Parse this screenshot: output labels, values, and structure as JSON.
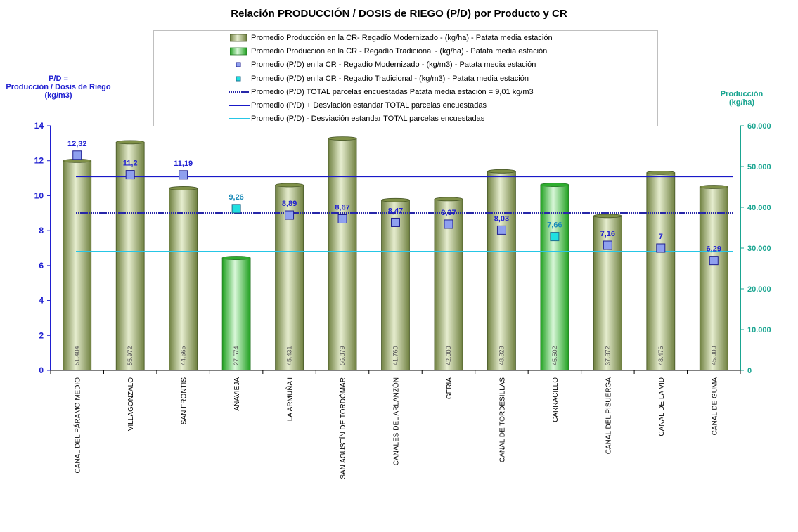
{
  "chart_data": {
    "type": "bar",
    "title": "Relación PRODUCCIÓN / DOSIS de RIEGO (P/D) por Producto y CR",
    "ylabel_left_lines": [
      "P/D =",
      "Producción / Dosis de Riego",
      "(kg/m3)"
    ],
    "ylabel_right_lines": [
      "Producción",
      "(kg/ha)"
    ],
    "ylim_left": [
      0,
      14
    ],
    "yticks_left": [
      "0",
      "2",
      "4",
      "6",
      "8",
      "10",
      "12",
      "14"
    ],
    "ylim_right": [
      0,
      60000
    ],
    "yticks_right": [
      "0",
      "10.000",
      "20.000",
      "30.000",
      "40.000",
      "50.000",
      "60.000"
    ],
    "categories": [
      "CANAL DEL PÁRAMO MEDIO",
      "VILLAGONZALO",
      "SAN FRONTIS",
      "AÑAVIEJA",
      "LA ARMUÑA I",
      "SAN AGUSTÍN DE TORDÓMAR",
      "CANALES DEL ARLANZÓN",
      "GERIA",
      "CANAL DE TORDESILLAS",
      "CARRACILLO",
      "CANAL DEL PISUERGA",
      "CANAL DE LA VID",
      "CANAL DE GUMA"
    ],
    "irrigation_type": [
      "mod",
      "mod",
      "mod",
      "trad",
      "mod",
      "mod",
      "mod",
      "mod",
      "mod",
      "trad",
      "mod",
      "mod",
      "mod"
    ],
    "production_values": [
      51404,
      55972,
      44665,
      27574,
      45431,
      56879,
      41760,
      42000,
      48828,
      45502,
      37872,
      48476,
      45000
    ],
    "production_labels": [
      "51.404",
      "55.972",
      "44.665",
      "27.574",
      "45.431",
      "56.879",
      "41.760",
      "42.000",
      "48.828",
      "45.502",
      "37.872",
      "48.476",
      "45.000"
    ],
    "pd_values": [
      12.32,
      11.2,
      11.19,
      9.26,
      8.89,
      8.67,
      8.47,
      8.37,
      8.03,
      7.66,
      7.16,
      7,
      6.29
    ],
    "pd_labels": [
      "12,32",
      "11,2",
      "11,19",
      "9,26",
      "8,89",
      "8,67",
      "8,47",
      "8,37",
      "8,03",
      "7,66",
      "7,16",
      "7",
      "6,29"
    ],
    "pd_total": 9.01,
    "pd_plus_sd": 11.1,
    "pd_minus_sd": 6.8,
    "legend": [
      "Promedio Producción en la CR- Regadío Modernizado -  (kg/ha) - Patata media estación",
      "Promedio Producción en la CR - Regadío Tradicional -  (kg/ha) - Patata media estación",
      "Promedio (P/D) en la CR - Regadío Modernizado - (kg/m3) - Patata media estación",
      "Promedio (P/D) en la CR - Regadío Tradicional - (kg/m3) - Patata media estación",
      "Promedio (P/D) TOTAL parcelas encuestadas Patata media estación = 9,01 kg/m3",
      "Promedio (P/D) + Desviación estandar TOTAL parcelas encuestadas",
      "Promedio (P/D) - Desviación estandar TOTAL parcelas encuestadas"
    ],
    "colors": {
      "bar_mod": "#a3b777",
      "bar_trad": "#4fd24f",
      "marker_mod": "#8fa0ef",
      "marker_trad": "#20e0e0",
      "line_total": "#2727a8",
      "line_plus": "#1919c8",
      "line_minus": "#26c6e6",
      "axis_left": "#1f1fd1",
      "axis_right": "#1aa591"
    },
    "grid": false
  }
}
